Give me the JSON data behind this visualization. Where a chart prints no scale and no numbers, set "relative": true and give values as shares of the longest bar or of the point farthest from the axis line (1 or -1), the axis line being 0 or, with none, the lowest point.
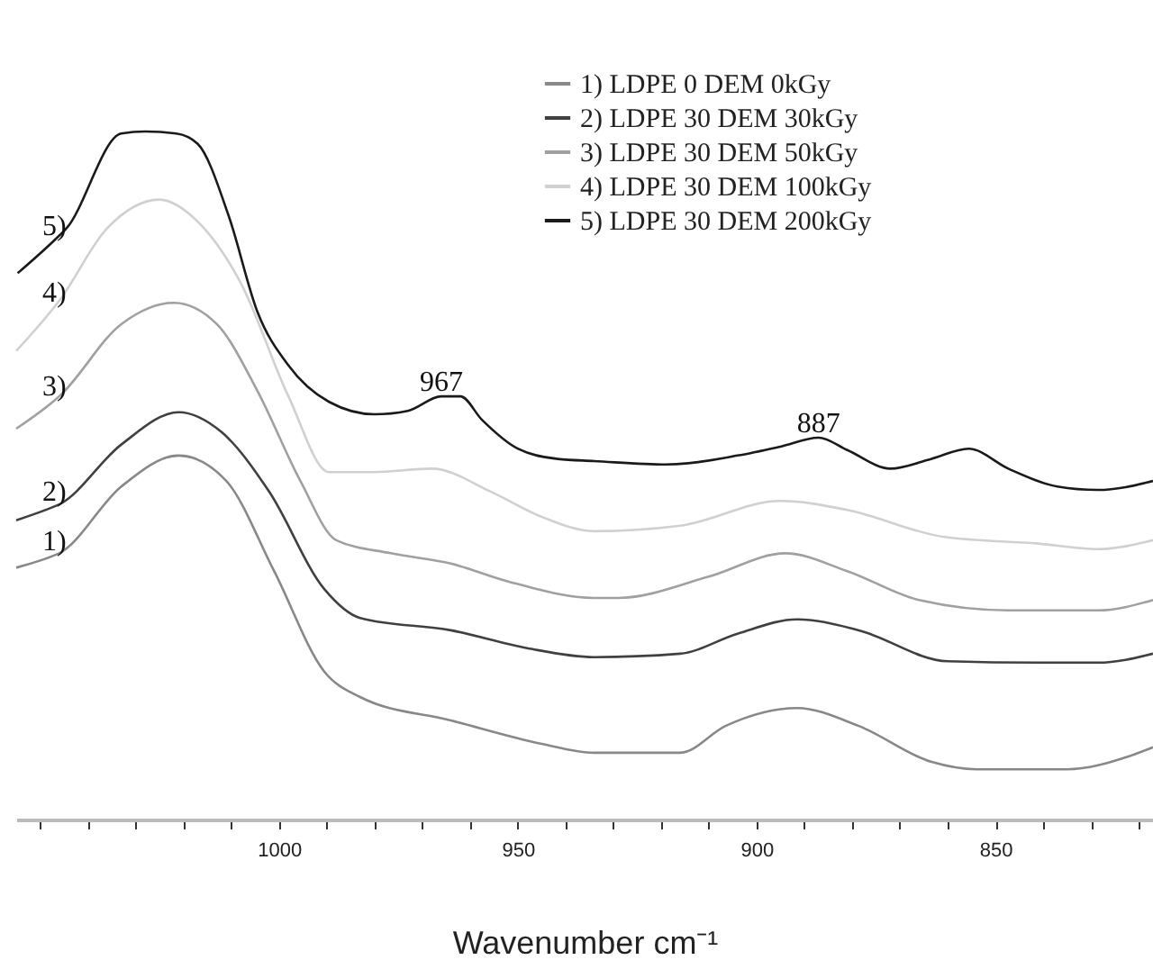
{
  "chart_data": {
    "type": "line",
    "relative": true,
    "xlabel": "Wavenumber  cm⁻¹",
    "xlim": [
      1055,
      817
    ],
    "xticks": [
      {
        "value": 1050,
        "label": null
      },
      {
        "value": 1040,
        "label": null
      },
      {
        "value": 1030,
        "label": null
      },
      {
        "value": 1020,
        "label": null
      },
      {
        "value": 1010,
        "label": null
      },
      1000,
      {
        "value": 990,
        "label": null
      },
      {
        "value": 980,
        "label": null
      },
      {
        "value": 970,
        "label": null
      },
      {
        "value": 960,
        "label": null
      },
      950,
      {
        "value": 940,
        "label": null
      },
      {
        "value": 930,
        "label": null
      },
      {
        "value": 920,
        "label": null
      },
      {
        "value": 910,
        "label": null
      },
      900,
      {
        "value": 890,
        "label": null
      },
      {
        "value": 880,
        "label": null
      },
      {
        "value": 870,
        "label": null
      },
      {
        "value": 860,
        "label": null
      },
      850,
      {
        "value": 840,
        "label": null
      },
      {
        "value": 830,
        "label": null
      },
      {
        "value": 820,
        "label": null
      }
    ],
    "legend": "top right",
    "series": [
      {
        "name": "1) LDPE 0 DEM 0kGy",
        "color": "#888888",
        "x": [
          1055,
          1047,
          1046,
          1033,
          1021,
          1011,
          1001,
          990.5,
          983,
          964,
          945,
          934,
          916,
          906.5,
          891.5,
          878.6,
          863.5,
          854,
          835,
          822,
          817
        ],
        "values": [
          0.366,
          0.384,
          0.387,
          0.484,
          0.529,
          0.492,
          0.361,
          0.215,
          0.178,
          0.144,
          0.11,
          0.097,
          0.097,
          0.136,
          0.162,
          0.136,
          0.084,
          0.073,
          0.073,
          0.092,
          0.105
        ]
      },
      {
        "name": "2) LDPE 30 DEM 30kGy",
        "color": "#404040",
        "x": [
          1055,
          1047,
          1046,
          1033,
          1021,
          1012,
          1002,
          990.5,
          983,
          964,
          948,
          934,
          916,
          904,
          891.5,
          878.6,
          860,
          841,
          828.5,
          817
        ],
        "values": [
          0.435,
          0.455,
          0.458,
          0.545,
          0.592,
          0.563,
          0.476,
          0.335,
          0.293,
          0.275,
          0.249,
          0.236,
          0.241,
          0.27,
          0.291,
          0.275,
          0.23,
          0.228,
          0.228,
          0.241
        ]
      },
      {
        "name": "3) LDPE 30 DEM 50kGy",
        "color": "#a0a0a0",
        "x": [
          1055,
          1047,
          1046,
          1033,
          1022,
          1013,
          1004.5,
          995.5,
          988,
          976.6,
          964,
          952,
          934,
          929,
          910,
          894,
          881,
          866,
          847.3,
          828.5,
          817
        ],
        "values": [
          0.568,
          0.609,
          0.615,
          0.72,
          0.751,
          0.72,
          0.623,
          0.492,
          0.406,
          0.387,
          0.372,
          0.346,
          0.322,
          0.322,
          0.353,
          0.387,
          0.361,
          0.319,
          0.304,
          0.304,
          0.319
        ]
      },
      {
        "name": "4) LDPE 30 DEM 100kGy",
        "color": "#d0d0d0",
        "x": [
          1055,
          1047,
          1046,
          1036,
          1025,
          1017,
          1008,
          998,
          989.5,
          980,
          968,
          955.5,
          945,
          934,
          916,
          895,
          881,
          861,
          841,
          828.5,
          817
        ],
        "values": [
          0.681,
          0.745,
          0.754,
          0.859,
          0.901,
          0.869,
          0.78,
          0.615,
          0.505,
          0.505,
          0.51,
          0.476,
          0.44,
          0.419,
          0.427,
          0.463,
          0.45,
          0.411,
          0.401,
          0.393,
          0.406
        ]
      },
      {
        "name": "5) LDPE 30 DEM 200kGy",
        "color": "#1a1a1a",
        "x": [
          1054.7,
          1047,
          1044.5,
          1033,
          1028,
          1021.5,
          1017,
          1010.5,
          1004.5,
          998,
          989.5,
          980,
          973,
          966,
          962,
          957.5,
          950,
          941.6,
          934,
          919,
          904,
          895,
          887,
          881,
          872,
          863.5,
          855.6,
          847.3,
          837,
          828.5,
          817
        ],
        "values": [
          0.794,
          0.842,
          0.859,
          0.997,
          1.0,
          0.997,
          0.982,
          0.877,
          0.738,
          0.66,
          0.607,
          0.589,
          0.594,
          0.615,
          0.615,
          0.581,
          0.539,
          0.524,
          0.521,
          0.516,
          0.529,
          0.542,
          0.555,
          0.537,
          0.51,
          0.524,
          0.539,
          0.51,
          0.484,
          0.479,
          0.492
        ]
      }
    ],
    "annotations": [
      {
        "text": "5)",
        "x": 1047,
        "y": 0.842
      },
      {
        "text": "4)",
        "x": 1047,
        "y": 0.745
      },
      {
        "text": "3)",
        "x": 1047,
        "y": 0.609
      },
      {
        "text": "2)",
        "x": 1047,
        "y": 0.455
      },
      {
        "text": "1)",
        "x": 1047,
        "y": 0.384
      },
      {
        "text": "967",
        "x": 966,
        "y": 0.615
      },
      {
        "text": "887",
        "x": 887,
        "y": 0.555
      }
    ]
  }
}
